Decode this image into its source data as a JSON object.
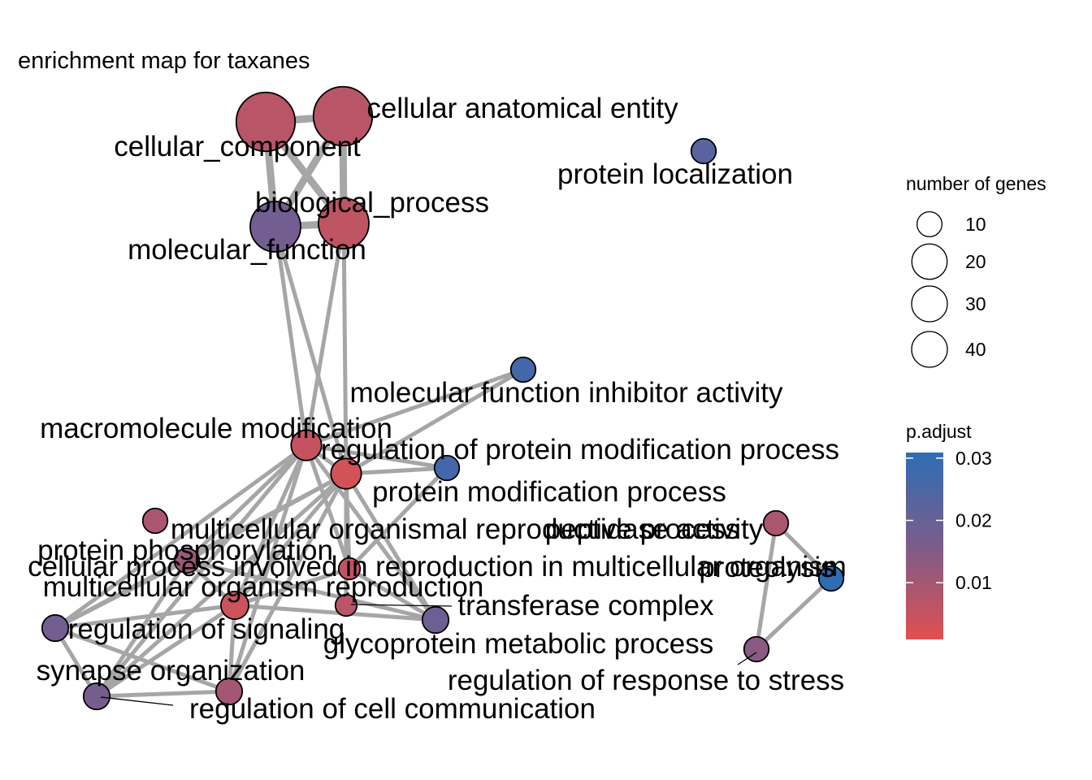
{
  "title": "enrichment map for taxanes",
  "nodes": [
    {
      "id": "cellular_component",
      "label": "cellular_component",
      "genes": 45,
      "p_adjust": 0.006
    },
    {
      "id": "cellular_anatomical_entity",
      "label": "cellular anatomical entity",
      "genes": 45,
      "p_adjust": 0.006
    },
    {
      "id": "protein_localization",
      "label": "protein localization",
      "genes": 8,
      "p_adjust": 0.022
    },
    {
      "id": "biological_process",
      "label": "biological_process",
      "genes": 33,
      "p_adjust": 0.005
    },
    {
      "id": "molecular_function",
      "label": "molecular_function",
      "genes": 33,
      "p_adjust": 0.017
    },
    {
      "id": "molecular_function_inhibitor_activity",
      "label": "molecular function inhibitor activity",
      "genes": 8,
      "p_adjust": 0.026
    },
    {
      "id": "macromolecule_modification",
      "label": "macromolecule modification",
      "genes": 12,
      "p_adjust": 0.004
    },
    {
      "id": "regulation_of_protein_modification_process",
      "label": "regulation of protein modification process",
      "genes": 8,
      "p_adjust": 0.026
    },
    {
      "id": "protein_modification_process",
      "label": "protein modification process",
      "genes": 12,
      "p_adjust": 0.002
    },
    {
      "id": "multicellular_organismal_reproductive_process",
      "label": "multicellular organismal reproductive process",
      "genes": 8,
      "p_adjust": 0.008
    },
    {
      "id": "peptidase_activity",
      "label": "peptidase activity",
      "genes": 8,
      "p_adjust": 0.008
    },
    {
      "id": "protein_phosphorylation",
      "label": "protein phosphorylation",
      "genes": 8,
      "p_adjust": 0.01
    },
    {
      "id": "cellular_process_involved_in_reproduction",
      "label": "cellular process involved in reproduction in multicellular organism",
      "genes": 6,
      "p_adjust": 0.005
    },
    {
      "id": "proteolysis",
      "label": "proteolysis",
      "genes": 8,
      "p_adjust": 0.03
    },
    {
      "id": "multicellular_organism_reproduction",
      "label": "multicellular organism reproduction",
      "genes": 10,
      "p_adjust": 0.003
    },
    {
      "id": "transferase_complex",
      "label": "transferase complex",
      "genes": 6,
      "p_adjust": 0.006
    },
    {
      "id": "regulation_of_signaling",
      "label": "regulation of signaling",
      "genes": 9,
      "p_adjust": 0.017
    },
    {
      "id": "glycoprotein_metabolic_process",
      "label": "glycoprotein metabolic process",
      "genes": 9,
      "p_adjust": 0.018
    },
    {
      "id": "regulation_of_response_to_stress",
      "label": "regulation of response to stress",
      "genes": 8,
      "p_adjust": 0.013
    },
    {
      "id": "synapse_organization",
      "label": "synapse organization",
      "genes": 9,
      "p_adjust": 0.016
    },
    {
      "id": "regulation_of_cell_communication",
      "label": "regulation of cell communication",
      "genes": 9,
      "p_adjust": 0.009
    }
  ],
  "edges": [
    [
      "cellular_component",
      "cellular_anatomical_entity"
    ],
    [
      "cellular_component",
      "biological_process"
    ],
    [
      "cellular_component",
      "molecular_function"
    ],
    [
      "cellular_anatomical_entity",
      "biological_process"
    ],
    [
      "cellular_anatomical_entity",
      "molecular_function"
    ],
    [
      "biological_process",
      "molecular_function"
    ],
    [
      "molecular_function",
      "macromolecule_modification"
    ],
    [
      "molecular_function",
      "protein_modification_process"
    ],
    [
      "biological_process",
      "macromolecule_modification"
    ],
    [
      "biological_process",
      "protein_modification_process"
    ],
    [
      "macromolecule_modification",
      "molecular_function_inhibitor_activity"
    ],
    [
      "protein_modification_process",
      "molecular_function_inhibitor_activity"
    ],
    [
      "macromolecule_modification",
      "protein_modification_process"
    ],
    [
      "macromolecule_modification",
      "regulation_of_protein_modification_process"
    ],
    [
      "protein_modification_process",
      "regulation_of_protein_modification_process"
    ],
    [
      "macromolecule_modification",
      "protein_phosphorylation"
    ],
    [
      "macromolecule_modification",
      "multicellular_organism_reproduction"
    ],
    [
      "macromolecule_modification",
      "regulation_of_signaling"
    ],
    [
      "macromolecule_modification",
      "synapse_organization"
    ],
    [
      "macromolecule_modification",
      "regulation_of_cell_communication"
    ],
    [
      "macromolecule_modification",
      "cellular_process_involved_in_reproduction"
    ],
    [
      "macromolecule_modification",
      "glycoprotein_metabolic_process"
    ],
    [
      "protein_modification_process",
      "protein_phosphorylation"
    ],
    [
      "protein_modification_process",
      "multicellular_organism_reproduction"
    ],
    [
      "protein_modification_process",
      "regulation_of_signaling"
    ],
    [
      "protein_modification_process",
      "synapse_organization"
    ],
    [
      "protein_modification_process",
      "regulation_of_cell_communication"
    ],
    [
      "protein_modification_process",
      "cellular_process_involved_in_reproduction"
    ],
    [
      "protein_modification_process",
      "glycoprotein_metabolic_process"
    ],
    [
      "protein_modification_process",
      "transferase_complex"
    ],
    [
      "regulation_of_protein_modification_process",
      "cellular_process_involved_in_reproduction"
    ],
    [
      "protein_phosphorylation",
      "multicellular_organism_reproduction"
    ],
    [
      "protein_phosphorylation",
      "glycoprotein_metabolic_process"
    ],
    [
      "protein_phosphorylation",
      "regulation_of_signaling"
    ],
    [
      "protein_phosphorylation",
      "synapse_organization"
    ],
    [
      "multicellular_organism_reproduction",
      "cellular_process_involved_in_reproduction"
    ],
    [
      "multicellular_organism_reproduction",
      "glycoprotein_metabolic_process"
    ],
    [
      "multicellular_organism_reproduction",
      "regulation_of_signaling"
    ],
    [
      "multicellular_organism_reproduction",
      "synapse_organization"
    ],
    [
      "multicellular_organism_reproduction",
      "regulation_of_cell_communication"
    ],
    [
      "cellular_process_involved_in_reproduction",
      "glycoprotein_metabolic_process"
    ],
    [
      "regulation_of_signaling",
      "synapse_organization"
    ],
    [
      "regulation_of_signaling",
      "regulation_of_cell_communication"
    ],
    [
      "synapse_organization",
      "regulation_of_cell_communication"
    ],
    [
      "peptidase_activity",
      "proteolysis"
    ],
    [
      "peptidase_activity",
      "regulation_of_response_to_stress"
    ],
    [
      "proteolysis",
      "regulation_of_response_to_stress"
    ]
  ],
  "legend": {
    "size_title": "number of genes",
    "size_items": [
      {
        "label": "10",
        "value": 10
      },
      {
        "label": "20",
        "value": 20
      },
      {
        "label": "30",
        "value": 30
      },
      {
        "label": "40",
        "value": 40
      }
    ],
    "color_title": "p.adjust",
    "color_ticks": [
      {
        "label": "0.03",
        "value": 0.03
      },
      {
        "label": "0.02",
        "value": 0.02
      },
      {
        "label": "0.01",
        "value": 0.01
      }
    ],
    "color_range": [
      0.0,
      0.03
    ],
    "color_low": "#E05050",
    "color_high": "#2E6DB4"
  },
  "colors": {
    "edge": "#A6A6A6",
    "node_stroke": "#000000",
    "background": "#FFFFFF"
  }
}
